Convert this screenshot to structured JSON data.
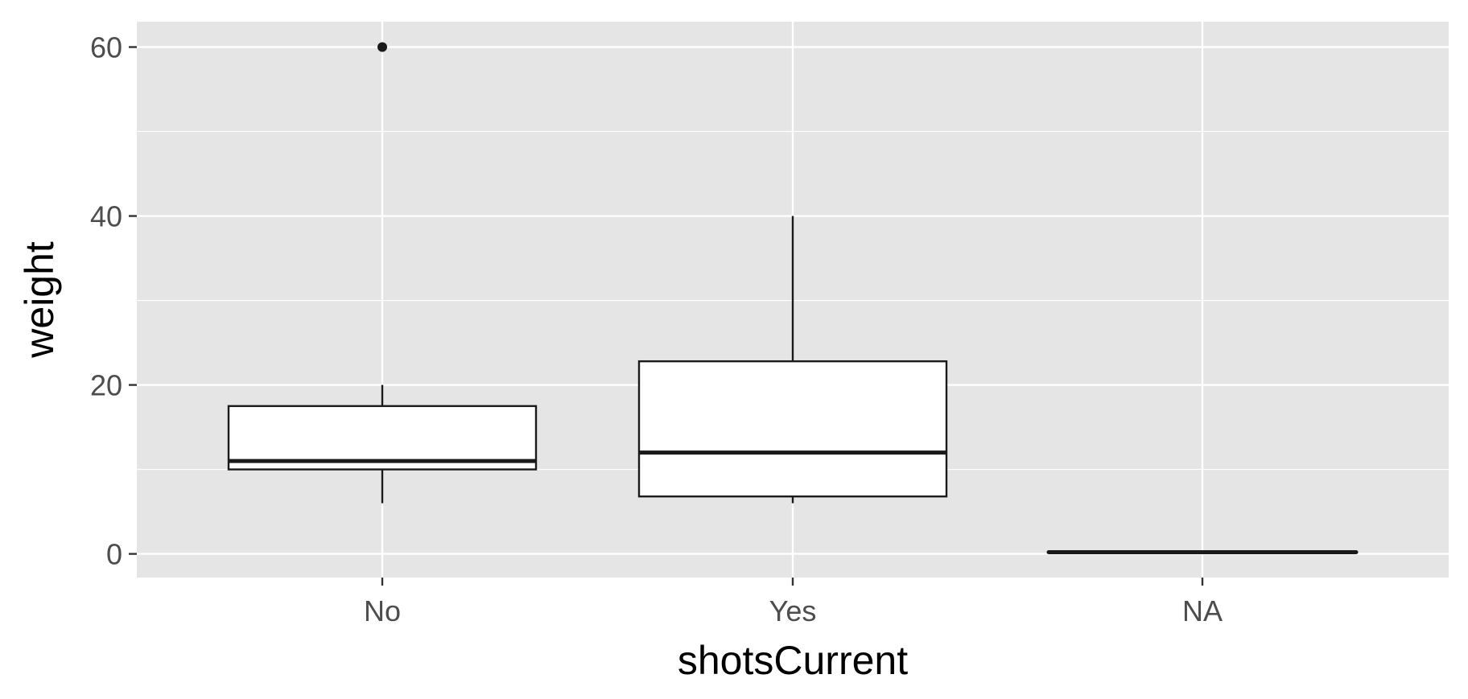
{
  "chart_data": {
    "type": "boxplot",
    "title": "",
    "xlabel": "shotsCurrent",
    "ylabel": "weight",
    "categories": [
      "No",
      "Yes",
      "NA"
    ],
    "boxes": [
      {
        "category": "No",
        "whisker_low": 6,
        "q1": 10,
        "median": 11,
        "q3": 17.5,
        "whisker_high": 20,
        "outliers": [
          60
        ]
      },
      {
        "category": "Yes",
        "whisker_low": 6,
        "q1": 6.8,
        "median": 12,
        "q3": 22.8,
        "whisker_high": 40,
        "outliers": []
      },
      {
        "category": "NA",
        "whisker_low": 0.2,
        "q1": 0.2,
        "median": 0.2,
        "q3": 0.2,
        "whisker_high": 0.2,
        "outliers": []
      }
    ],
    "y_ticks": [
      0,
      20,
      40,
      60
    ],
    "y_minor_ticks": [
      10,
      30,
      50
    ],
    "ylim": [
      -2.8,
      63
    ],
    "grid": true,
    "legend": "none",
    "colors": {
      "panel_background": "#e5e5e5",
      "grid_line": "#ffffff",
      "box_fill": "#ffffff",
      "box_stroke": "#1a1a1a",
      "tick_label": "#4d4d4d",
      "axis_title": "#000000"
    }
  }
}
